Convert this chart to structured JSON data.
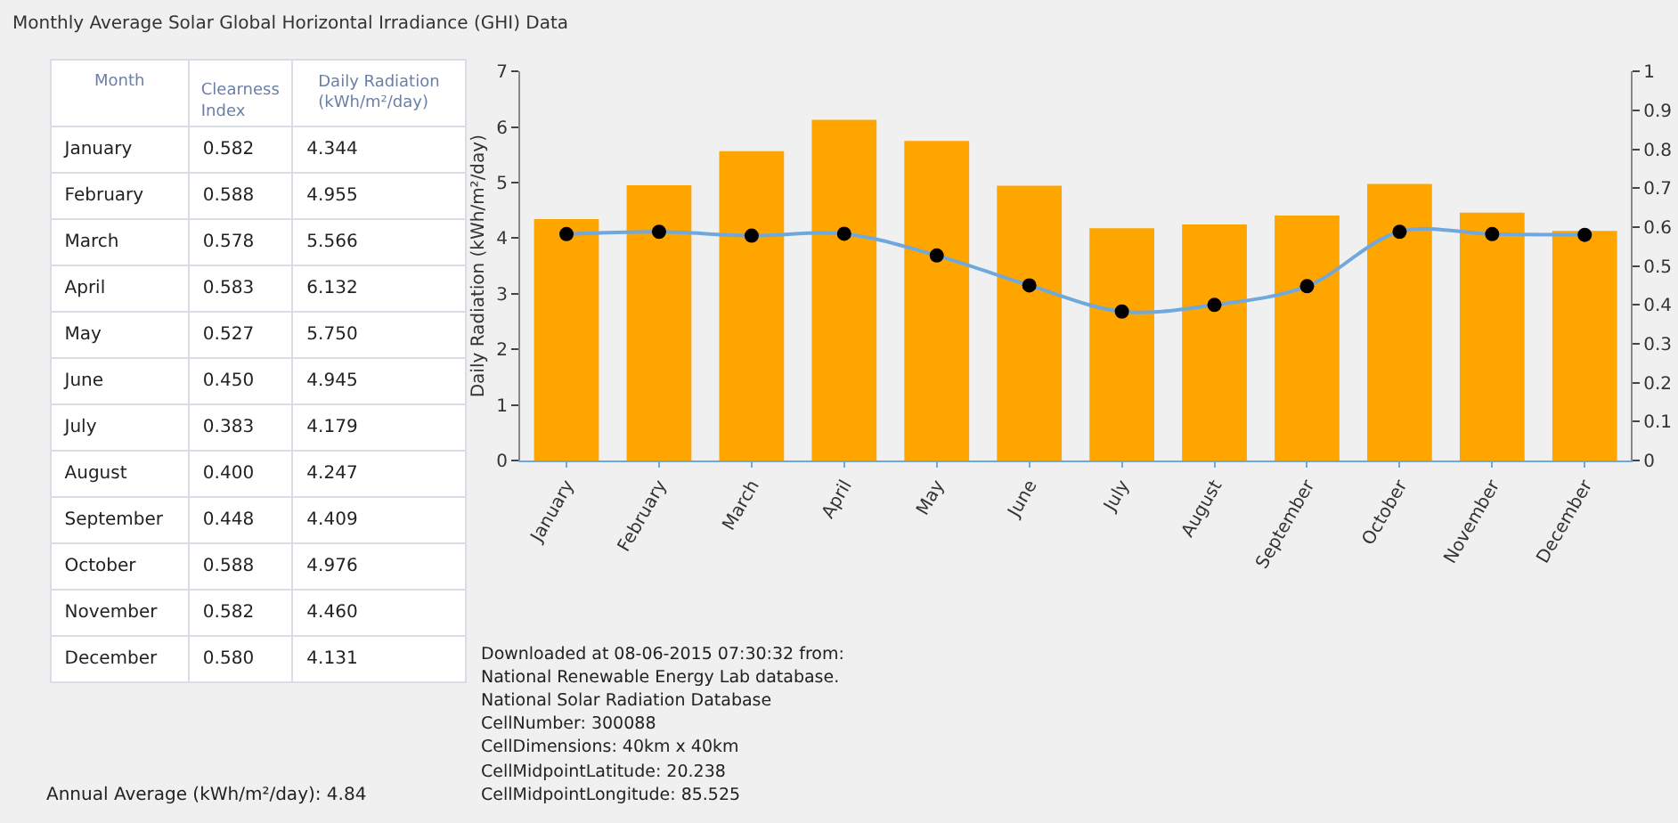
{
  "chart_data": [
    {
      "type": "other",
      "title": "Monthly Average Solar Global Horizontal Irradiance (GHI) Data",
      "xlabel": "Month",
      "categories": [
        "January",
        "February",
        "March",
        "April",
        "May",
        "June",
        "July",
        "August",
        "September",
        "October",
        "November",
        "December"
      ],
      "series": [
        {
          "name": "Clearness Index",
          "values": [
            0.582,
            0.588,
            0.578,
            0.583,
            0.527,
            0.45,
            0.383,
            0.4,
            0.448,
            0.588,
            0.582,
            0.58
          ],
          "value_labels": [
            "0.582",
            "0.588",
            "0.578",
            "0.583",
            "0.527",
            "0.450",
            "0.383",
            "0.400",
            "0.448",
            "0.588",
            "0.582",
            "0.580"
          ]
        },
        {
          "name": "Daily Radiation (kWh/m²/day)",
          "values": [
            4.344,
            4.955,
            5.566,
            6.132,
            5.75,
            4.945,
            4.179,
            4.247,
            4.409,
            4.976,
            4.46,
            4.131
          ],
          "value_labels": [
            "4.344",
            "4.955",
            "5.566",
            "6.132",
            "5.750",
            "4.945",
            "4.179",
            "4.247",
            "4.409",
            "4.976",
            "4.460",
            "4.131"
          ]
        }
      ],
      "annotations": [
        "Annual Average (kWh/m²/day): 4.84"
      ]
    },
    {
      "type": "bar",
      "ylabel": "Daily Radiation (kWh/m²/day)",
      "categories": [
        "January",
        "February",
        "March",
        "April",
        "May",
        "June",
        "July",
        "August",
        "September",
        "October",
        "November",
        "December"
      ],
      "series": [
        {
          "type": "bar",
          "color": "#ffa500",
          "values": [
            4.344,
            4.955,
            5.566,
            6.132,
            5.75,
            4.945,
            4.179,
            4.247,
            4.409,
            4.976,
            4.46,
            4.131
          ]
        },
        {
          "type": "line",
          "axis": "y2",
          "color": "#6fa8dc",
          "marker": "circle",
          "values": [
            0.582,
            0.588,
            0.578,
            0.583,
            0.527,
            0.45,
            0.383,
            0.4,
            0.448,
            0.588,
            0.582,
            0.58
          ]
        }
      ],
      "ylim": [
        0,
        7
      ],
      "yticks": [
        0,
        1,
        2,
        3,
        4,
        5,
        6,
        7
      ],
      "y2lim": [
        0,
        1
      ],
      "y2ticks": [
        0,
        0.1,
        0.2,
        0.3,
        0.4,
        0.5,
        0.6,
        0.7,
        0.8,
        0.9,
        1
      ],
      "grid": false,
      "legend": false,
      "annotations": [
        "Downloaded at 08-06-2015 07:30:32 from:",
        "National Renewable Energy Lab database.",
        "National Solar Radiation Database",
        "CellNumber: 300088",
        "CellDimensions: 40km x 40km",
        "CellMidpointLatitude: 20.238",
        "CellMidpointLongitude: 85.525"
      ]
    }
  ]
}
